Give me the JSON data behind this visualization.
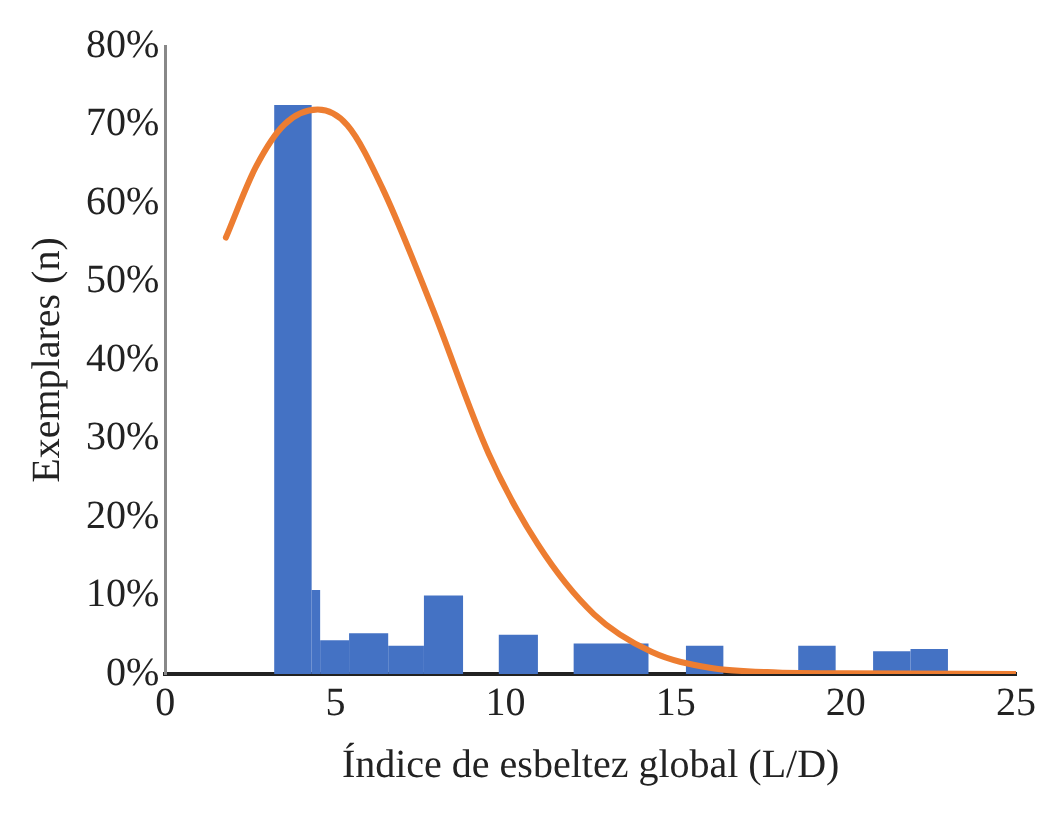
{
  "chart_data": {
    "type": "histogram",
    "xlabel": "Índice de esbeltez global (L/D)",
    "ylabel": "Exemplares (n)",
    "xlim": [
      0,
      25
    ],
    "xticks": [
      0,
      5,
      10,
      15,
      20,
      25
    ],
    "ylim": [
      0,
      80
    ],
    "yticks": [
      {
        "value": 0,
        "label": "0%"
      },
      {
        "value": 10,
        "label": "10%"
      },
      {
        "value": 20,
        "label": "20%"
      },
      {
        "value": 30,
        "label": "30%"
      },
      {
        "value": 40,
        "label": "40%"
      },
      {
        "value": 50,
        "label": "50%"
      },
      {
        "value": 60,
        "label": "60%"
      },
      {
        "value": 70,
        "label": "70%"
      },
      {
        "value": 80,
        "label": "80%"
      }
    ],
    "grid": false,
    "legend": false,
    "series": [
      {
        "color": "#4472c4",
        "bins": [
          3.2,
          4.3,
          4.55,
          5.4,
          6.55,
          7.6,
          8.75,
          9.8,
          10.95,
          12,
          14.2,
          15.3,
          16.4,
          18.6,
          19.7,
          20.8,
          21.9,
          23.0
        ],
        "values": [
          72.5,
          10.7,
          4.3,
          5.2,
          3.6,
          10,
          0,
          5,
          0,
          3.9,
          0,
          3.6,
          0,
          3.6,
          0,
          2.9,
          3.2
        ]
      },
      {
        "type": "line",
        "color": "#ed7d31",
        "marker": "none",
        "x": [
          1.78,
          2.65,
          3.5,
          4.48,
          5.35,
          6.38,
          7.84,
          9.5,
          10.95,
          12.6,
          14.3,
          16,
          18,
          20,
          25
        ],
        "values": [
          55.6,
          64.5,
          70,
          71.9,
          69.9,
          61.9,
          46.7,
          28.1,
          16.5,
          7.6,
          2.8,
          0.8,
          0.2,
          0.1,
          0
        ]
      }
    ]
  }
}
